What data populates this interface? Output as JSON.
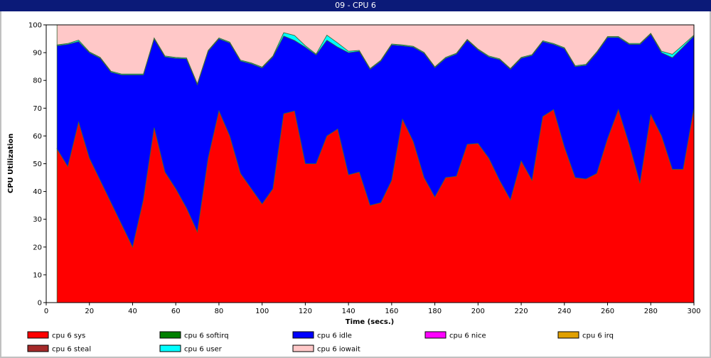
{
  "window": {
    "title": "09 - CPU 6"
  },
  "chart_data": {
    "type": "area",
    "stacked": true,
    "xlabel": "Time (secs.)",
    "ylabel": "CPU Utilization",
    "xlim": [
      0,
      300
    ],
    "ylim": [
      0,
      100
    ],
    "xticks": [
      0,
      20,
      40,
      60,
      80,
      100,
      120,
      140,
      160,
      180,
      200,
      220,
      240,
      260,
      280,
      300
    ],
    "yticks": [
      0,
      10,
      20,
      30,
      40,
      50,
      60,
      70,
      80,
      90,
      100
    ],
    "grid": false,
    "legend_position": "bottom",
    "x": [
      5,
      10,
      15,
      20,
      25,
      30,
      35,
      40,
      45,
      50,
      55,
      60,
      65,
      70,
      75,
      80,
      85,
      90,
      95,
      100,
      105,
      110,
      115,
      120,
      125,
      130,
      135,
      140,
      145,
      150,
      155,
      160,
      165,
      170,
      175,
      180,
      185,
      190,
      195,
      200,
      205,
      210,
      215,
      220,
      225,
      230,
      235,
      240,
      245,
      250,
      255,
      260,
      265,
      270,
      275,
      280,
      285,
      290,
      295,
      300
    ],
    "series": [
      {
        "name": "cpu 6 sys",
        "color": "#ff0000",
        "values": [
          55.3,
          49,
          65,
          52,
          44,
          36,
          28,
          20,
          37,
          63,
          47,
          41,
          34,
          25.5,
          52,
          69,
          60,
          46.5,
          41,
          35.5,
          41,
          68,
          69,
          50,
          50,
          60,
          62.5,
          46,
          47,
          35,
          36,
          44,
          66,
          58,
          45,
          38,
          45,
          45.5,
          57,
          57.3,
          52,
          44,
          37,
          51,
          44,
          67,
          69.5,
          56,
          45,
          44.5,
          46.5,
          59,
          69.5,
          57,
          43,
          67.7,
          60,
          48,
          48,
          70
        ]
      },
      {
        "name": "cpu 6 softirq",
        "color": "#008000",
        "values": [
          0,
          0,
          0,
          0,
          0,
          0,
          0,
          0,
          0,
          0,
          0,
          0,
          0,
          0,
          0,
          0,
          0,
          0,
          0,
          0,
          0,
          0,
          0,
          0,
          0,
          0,
          0,
          0,
          0,
          0,
          0,
          0,
          0,
          0,
          0,
          0,
          0,
          0,
          0,
          0,
          0,
          0,
          0,
          0,
          0,
          0,
          0,
          0,
          0,
          0,
          0,
          0,
          0,
          0,
          0,
          0,
          0,
          0,
          0,
          0
        ]
      },
      {
        "name": "cpu 6 idle",
        "color": "#0000ff",
        "values": [
          37.2,
          44,
          29,
          38,
          44,
          47,
          54,
          62,
          45,
          32,
          41.5,
          47,
          53.8,
          53,
          38.5,
          26,
          33.5,
          40.5,
          45,
          49,
          47.5,
          28,
          25.4,
          42,
          39.2,
          34.5,
          29.5,
          44,
          43.5,
          49,
          51,
          48.8,
          26.5,
          34,
          44.8,
          46.6,
          43,
          44,
          37.5,
          33.7,
          36.5,
          43.5,
          47,
          37,
          45,
          27,
          23.5,
          35.5,
          40,
          41,
          43.5,
          36.5,
          26,
          36,
          50,
          29,
          30,
          40.2,
          44,
          26
        ]
      },
      {
        "name": "cpu 6 nice",
        "color": "#ff00ff",
        "values": [
          0,
          0,
          0,
          0,
          0,
          0,
          0,
          0,
          0,
          0,
          0,
          0,
          0,
          0,
          0,
          0,
          0,
          0,
          0,
          0,
          0,
          0,
          0,
          0,
          0,
          0,
          0,
          0,
          0,
          0,
          0,
          0,
          0,
          0,
          0,
          0,
          0,
          0,
          0,
          0,
          0,
          0,
          0,
          0,
          0,
          0,
          0,
          0,
          0,
          0,
          0,
          0,
          0,
          0,
          0,
          0,
          0,
          0,
          0,
          0
        ]
      },
      {
        "name": "cpu 6 irq",
        "color": "#e0a000",
        "values": [
          0,
          0,
          0,
          0,
          0,
          0,
          0,
          0,
          0,
          0,
          0,
          0,
          0,
          0,
          0,
          0,
          0,
          0,
          0,
          0,
          0,
          0,
          0,
          0,
          0,
          0,
          0,
          0,
          0,
          0,
          0,
          0,
          0,
          0,
          0,
          0,
          0,
          0,
          0,
          0,
          0,
          0,
          0,
          0,
          0,
          0,
          0,
          0,
          0,
          0,
          0,
          0,
          0,
          0,
          0,
          0,
          0,
          0,
          0,
          0
        ]
      },
      {
        "name": "cpu 6 steal",
        "color": "#a52a2a",
        "values": [
          0,
          0,
          0,
          0,
          0,
          0,
          0,
          0,
          0,
          0,
          0,
          0,
          0,
          0,
          0,
          0,
          0,
          0,
          0,
          0,
          0,
          0,
          0,
          0,
          0,
          0,
          0,
          0,
          0,
          0,
          0,
          0,
          0,
          0,
          0,
          0,
          0,
          0,
          0,
          0,
          0,
          0,
          0,
          0,
          0,
          0,
          0,
          0,
          0,
          0,
          0,
          0,
          0,
          0,
          0,
          0,
          0,
          0,
          0,
          0
        ]
      },
      {
        "name": "cpu 6 user",
        "color": "#00ffff",
        "values": [
          0.3,
          0.3,
          0.5,
          0.3,
          0.3,
          0.3,
          0.3,
          0.3,
          0.3,
          0.3,
          0.3,
          0.3,
          0.3,
          0.3,
          0.3,
          0.3,
          0.3,
          0.3,
          0.3,
          0.3,
          0.3,
          1.2,
          1.8,
          0.5,
          0.3,
          1.8,
          1.5,
          0.5,
          0.3,
          0.3,
          0.3,
          0.3,
          0.3,
          0.3,
          0.3,
          0.3,
          0.3,
          0.3,
          0.3,
          0.3,
          0.3,
          0.3,
          0.3,
          0.3,
          0.3,
          0.3,
          0.3,
          0.3,
          0.3,
          0.3,
          0.3,
          0.3,
          0.3,
          0.3,
          0.3,
          0.3,
          0.5,
          1.2,
          0.8,
          0.3
        ]
      },
      {
        "name": "cpu 6 iowait",
        "color": "#ffc8c8",
        "values": [
          7.2,
          6.7,
          5.5,
          9.7,
          11.7,
          16.7,
          17.7,
          17.7,
          17.7,
          4.7,
          11.2,
          11.7,
          11.9,
          21.2,
          9.2,
          4.7,
          6.2,
          12.7,
          13.7,
          15.2,
          11.2,
          2.8,
          3.8,
          7.5,
          10.5,
          3.7,
          6.5,
          9.5,
          9.2,
          15.7,
          12.7,
          6.9,
          7.2,
          7.7,
          9.9,
          15.1,
          11.7,
          10.2,
          5.2,
          8.7,
          11.2,
          12.2,
          15.7,
          11.7,
          10.7,
          5.7,
          6.7,
          8.2,
          14.7,
          14.2,
          9.7,
          4.2,
          4.2,
          6.7,
          6.7,
          3.0,
          9.5,
          10.6,
          7.2,
          3.7
        ]
      }
    ]
  }
}
